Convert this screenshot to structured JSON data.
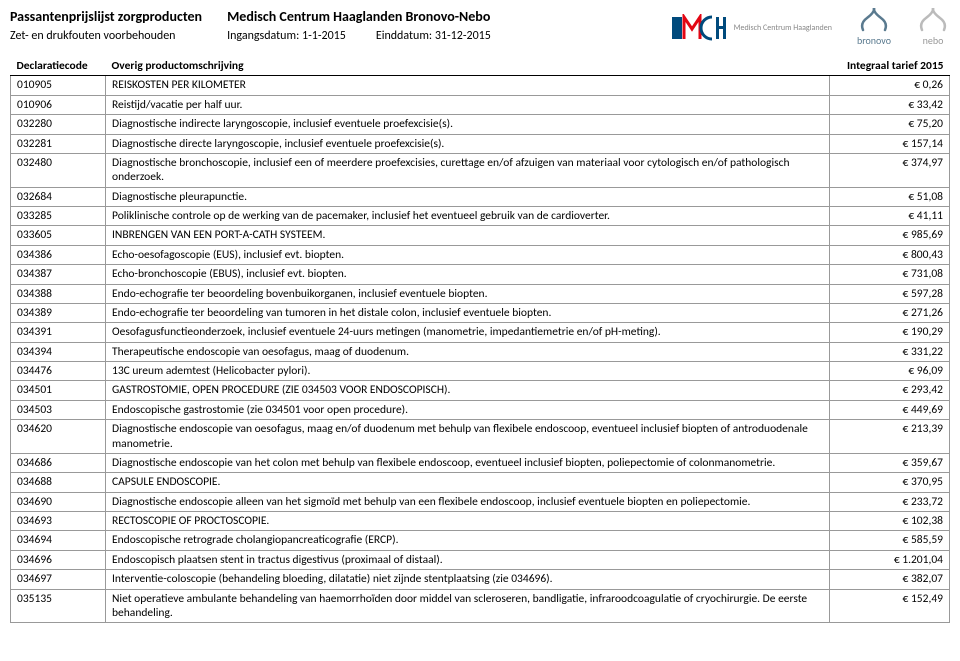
{
  "header": {
    "title_left": "Passantenprijslijst zorgproducten",
    "subtitle_left": "Zet- en drukfouten voorbehouden",
    "title_center": "Medisch Centrum Haaglanden Bronovo-Nebo",
    "date_start_label": "Ingangsdatum: 1-1-2015",
    "date_end_label": "Einddatum: 31-12-2015"
  },
  "logos": {
    "mch_text": "Medisch Centrum Haaglanden",
    "bronovo_text": "bronovo",
    "nebo_text": "nebo"
  },
  "table": {
    "columns": [
      "Declaratiecode",
      "Overig productomschrijving",
      "Integraal tarief 2015"
    ],
    "rows": [
      [
        "010905",
        "REISKOSTEN PER KILOMETER",
        "€ 0,26"
      ],
      [
        "010906",
        "Reistijd/vacatie per half uur.",
        "€ 33,42"
      ],
      [
        "032280",
        "Diagnostische indirecte laryngoscopie, inclusief eventuele proefexcisie(s).",
        "€ 75,20"
      ],
      [
        "032281",
        "Diagnostische directe laryngoscopie, inclusief eventuele proefexcisie(s).",
        "€ 157,14"
      ],
      [
        "032480",
        "Diagnostische bronchoscopie, inclusief een of meerdere proefexcisies, curettage en/of afzuigen van materiaal voor cytologisch en/of pathologisch onderzoek.",
        "€ 374,97"
      ],
      [
        "032684",
        "Diagnostische pleurapunctie.",
        "€ 51,08"
      ],
      [
        "033285",
        "Poliklinische controle op de werking van de pacemaker, inclusief het eventueel gebruik van de cardioverter.",
        "€ 41,11"
      ],
      [
        "033605",
        "INBRENGEN VAN EEN PORT-A-CATH SYSTEEM.",
        "€ 985,69"
      ],
      [
        "034386",
        "Echo-oesofagoscopie (EUS), inclusief evt. biopten.",
        "€ 800,43"
      ],
      [
        "034387",
        "Echo-bronchoscopie (EBUS), inclusief evt. biopten.",
        "€ 731,08"
      ],
      [
        "034388",
        "Endo-echografie ter beoordeling bovenbuikorganen, inclusief eventuele biopten.",
        "€ 597,28"
      ],
      [
        "034389",
        "Endo-echografie ter beoordeling van tumoren in het distale colon, inclusief eventuele biopten.",
        "€ 271,26"
      ],
      [
        "034391",
        "Oesofagusfunctieonderzoek, inclusief eventuele 24-uurs metingen (manometrie, impedantiemetrie en/of pH-meting).",
        "€ 190,29"
      ],
      [
        "034394",
        "Therapeutische endoscopie van oesofagus, maag of duodenum.",
        "€ 331,22"
      ],
      [
        "034476",
        "13C ureum ademtest (Helicobacter pylori).",
        "€ 96,09"
      ],
      [
        "034501",
        "GASTROSTOMIE, OPEN PROCEDURE (ZIE 034503 VOOR ENDOSCOPISCH).",
        "€ 293,42"
      ],
      [
        "034503",
        "Endoscopische gastrostomie (zie 034501 voor open procedure).",
        "€ 449,69"
      ],
      [
        "034620",
        "Diagnostische endoscopie van oesofagus, maag en/of duodenum met behulp van flexibele endoscoop, eventueel inclusief biopten of antroduodenale manometrie.",
        "€ 213,39"
      ],
      [
        "034686",
        "Diagnostische endoscopie van het colon met behulp van flexibele endoscoop, eventueel inclusief biopten, poliepectomie of colonmanometrie.",
        "€ 359,67"
      ],
      [
        "034688",
        "CAPSULE ENDOSCOPIE.",
        "€ 370,95"
      ],
      [
        "034690",
        "Diagnostische endoscopie alleen van het sigmoïd met behulp van een flexibele endoscoop, inclusief eventuele biopten en poliepectomie.",
        "€ 233,72"
      ],
      [
        "034693",
        "RECTOSCOPIE OF PROCTOSCOPIE.",
        "€ 102,38"
      ],
      [
        "034694",
        "Endoscopische retrograde cholangiopancreaticografie (ERCP).",
        "€ 585,59"
      ],
      [
        "034696",
        "Endoscopisch plaatsen stent in tractus digestivus (proximaal of distaal).",
        "€ 1.201,04"
      ],
      [
        "034697",
        "Interventie-coloscopie (behandeling bloeding, dilatatie) niet zijnde stentplaatsing (zie 034696).",
        "€ 382,07"
      ],
      [
        "035135",
        "Niet operatieve ambulante behandeling van haemorrhoïden door middel van scleroseren, bandligatie, infraroodcoagulatie of cryochirurgie. De eerste behandeling.",
        "€ 152,49"
      ]
    ]
  }
}
